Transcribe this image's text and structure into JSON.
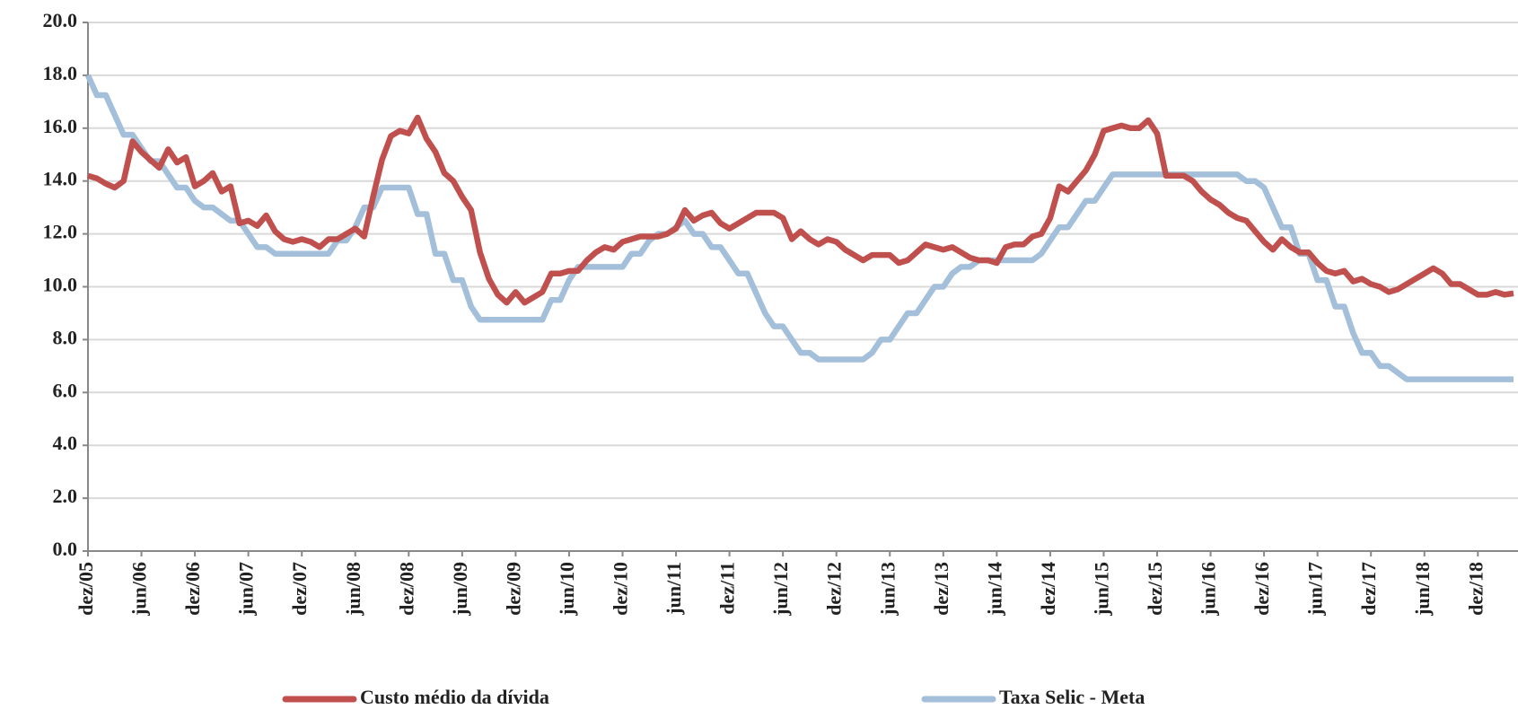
{
  "chart_data": {
    "type": "line",
    "categories": [
      "dez/05",
      null,
      null,
      null,
      null,
      null,
      "jun/06",
      null,
      null,
      null,
      null,
      null,
      "dez/06",
      null,
      null,
      null,
      null,
      null,
      "jun/07",
      null,
      null,
      null,
      null,
      null,
      "dez/07",
      null,
      null,
      null,
      null,
      null,
      "jun/08",
      null,
      null,
      null,
      null,
      null,
      "dez/08",
      null,
      null,
      null,
      null,
      null,
      "jun/09",
      null,
      null,
      null,
      null,
      null,
      "dez/09",
      null,
      null,
      null,
      null,
      null,
      "jun/10",
      null,
      null,
      null,
      null,
      null,
      "dez/10",
      null,
      null,
      null,
      null,
      null,
      "jun/11",
      null,
      null,
      null,
      null,
      null,
      "dez/11",
      null,
      null,
      null,
      null,
      null,
      "jun/12",
      null,
      null,
      null,
      null,
      null,
      "dez/12",
      null,
      null,
      null,
      null,
      null,
      "jun/13",
      null,
      null,
      null,
      null,
      null,
      "dez/13",
      null,
      null,
      null,
      null,
      null,
      "jun/14",
      null,
      null,
      null,
      null,
      null,
      "dez/14",
      null,
      null,
      null,
      null,
      null,
      "jun/15",
      null,
      null,
      null,
      null,
      null,
      "dez/15",
      null,
      null,
      null,
      null,
      null,
      "jun/16",
      null,
      null,
      null,
      null,
      null,
      "dez/16",
      null,
      null,
      null,
      null,
      null,
      "jun/17",
      null,
      null,
      null,
      null,
      null,
      "dez/17",
      null,
      null,
      null,
      null,
      null,
      "jun/18",
      null,
      null,
      null,
      null,
      null,
      "dez/18",
      null,
      null,
      null,
      null
    ],
    "series": [
      {
        "name": "Custo médio da dívida",
        "color": "#c0504d",
        "values": [
          14.2,
          14.1,
          13.9,
          13.75,
          14.0,
          15.5,
          15.1,
          14.8,
          14.5,
          15.2,
          14.7,
          14.9,
          13.8,
          14.0,
          14.3,
          13.6,
          13.8,
          12.4,
          12.5,
          12.3,
          12.7,
          12.1,
          11.8,
          11.7,
          11.8,
          11.7,
          11.5,
          11.8,
          11.8,
          12.0,
          12.2,
          11.9,
          13.4,
          14.8,
          15.7,
          15.9,
          15.8,
          16.4,
          15.6,
          15.1,
          14.3,
          14.0,
          13.4,
          12.9,
          11.3,
          10.3,
          9.7,
          9.4,
          9.8,
          9.4,
          9.6,
          9.8,
          10.5,
          10.5,
          10.6,
          10.6,
          11.0,
          11.3,
          11.5,
          11.4,
          11.7,
          11.8,
          11.9,
          11.9,
          11.9,
          12.0,
          12.2,
          12.9,
          12.5,
          12.7,
          12.8,
          12.4,
          12.2,
          12.4,
          12.6,
          12.8,
          12.8,
          12.8,
          12.6,
          11.8,
          12.1,
          11.8,
          11.6,
          11.8,
          11.7,
          11.4,
          11.2,
          11.0,
          11.2,
          11.2,
          11.2,
          10.9,
          11.0,
          11.3,
          11.6,
          11.5,
          11.4,
          11.5,
          11.3,
          11.1,
          11.0,
          11.0,
          10.9,
          11.5,
          11.6,
          11.6,
          11.9,
          12.0,
          12.6,
          13.8,
          13.6,
          14.0,
          14.4,
          15.0,
          15.9,
          16.0,
          16.1,
          16.0,
          16.0,
          16.3,
          15.8,
          14.2,
          14.2,
          14.2,
          14.0,
          13.6,
          13.3,
          13.1,
          12.8,
          12.6,
          12.5,
          12.1,
          11.7,
          11.4,
          11.8,
          11.5,
          11.3,
          11.3,
          10.9,
          10.6,
          10.5,
          10.6,
          10.2,
          10.3,
          10.1,
          10.0,
          9.8,
          9.9,
          10.1,
          10.3,
          10.5,
          10.7,
          10.5,
          10.1,
          10.1,
          9.9,
          9.7,
          9.7,
          9.8,
          9.7,
          9.75
        ]
      },
      {
        "name": "Taxa Selic - Meta",
        "color": "#a3bfda",
        "values": [
          18.0,
          17.25,
          17.25,
          16.5,
          15.75,
          15.75,
          15.25,
          14.75,
          14.75,
          14.25,
          13.75,
          13.75,
          13.25,
          13.0,
          13.0,
          12.75,
          12.5,
          12.5,
          12.0,
          11.5,
          11.5,
          11.25,
          11.25,
          11.25,
          11.25,
          11.25,
          11.25,
          11.25,
          11.75,
          11.75,
          12.25,
          13.0,
          13.0,
          13.75,
          13.75,
          13.75,
          13.75,
          12.75,
          12.75,
          11.25,
          11.25,
          10.25,
          10.25,
          9.25,
          8.75,
          8.75,
          8.75,
          8.75,
          8.75,
          8.75,
          8.75,
          8.75,
          9.5,
          9.5,
          10.25,
          10.75,
          10.75,
          10.75,
          10.75,
          10.75,
          10.75,
          11.25,
          11.25,
          11.75,
          12.0,
          12.0,
          12.25,
          12.5,
          12.0,
          12.0,
          11.5,
          11.5,
          11.0,
          10.5,
          10.5,
          9.75,
          9.0,
          8.5,
          8.5,
          8.0,
          7.5,
          7.5,
          7.25,
          7.25,
          7.25,
          7.25,
          7.25,
          7.25,
          7.5,
          8.0,
          8.0,
          8.5,
          9.0,
          9.0,
          9.5,
          10.0,
          10.0,
          10.5,
          10.75,
          10.75,
          11.0,
          11.0,
          11.0,
          11.0,
          11.0,
          11.0,
          11.0,
          11.25,
          11.75,
          12.25,
          12.25,
          12.75,
          13.25,
          13.25,
          13.75,
          14.25,
          14.25,
          14.25,
          14.25,
          14.25,
          14.25,
          14.25,
          14.25,
          14.25,
          14.25,
          14.25,
          14.25,
          14.25,
          14.25,
          14.25,
          14.0,
          14.0,
          13.75,
          13.0,
          12.25,
          12.25,
          11.25,
          11.25,
          10.25,
          10.25,
          9.25,
          9.25,
          8.25,
          7.5,
          7.5,
          7.0,
          7.0,
          6.75,
          6.5,
          6.5,
          6.5,
          6.5,
          6.5,
          6.5,
          6.5,
          6.5,
          6.5,
          6.5,
          6.5,
          6.5,
          6.5
        ]
      }
    ],
    "ylim": [
      0,
      20
    ],
    "yticks": [
      {
        "value": 0,
        "label": "0.0"
      },
      {
        "value": 2,
        "label": "2.0"
      },
      {
        "value": 4,
        "label": "4.0"
      },
      {
        "value": 6,
        "label": "6.0"
      },
      {
        "value": 8,
        "label": "8.0"
      },
      {
        "value": 10,
        "label": "10.0"
      },
      {
        "value": 12,
        "label": "12.0"
      },
      {
        "value": 14,
        "label": "14.0"
      },
      {
        "value": 16,
        "label": "16.0"
      },
      {
        "value": 18,
        "label": "18.0"
      },
      {
        "value": 20,
        "label": "20.0"
      }
    ],
    "grid": true
  }
}
